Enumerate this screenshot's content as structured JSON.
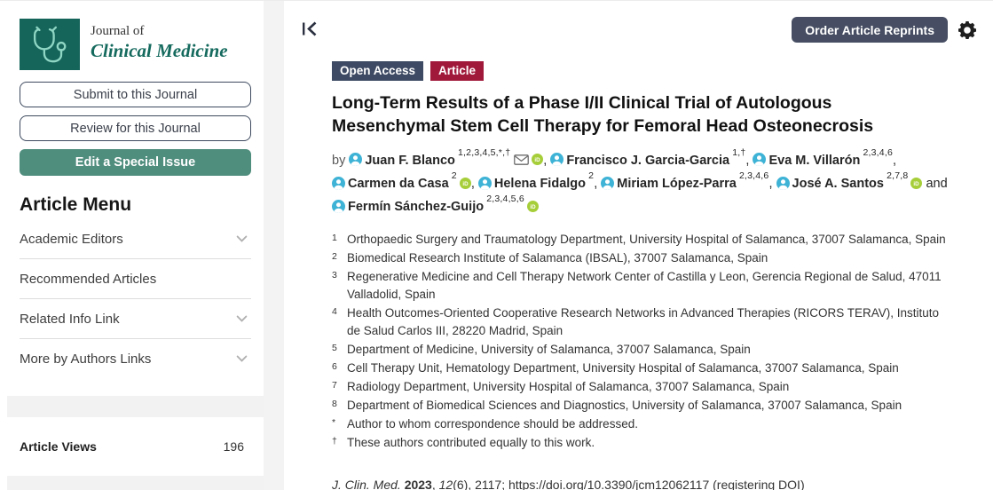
{
  "colors": {
    "brand_teal": "#16655B",
    "teal_button": "#4F8D7D",
    "badge_open_access": "#3E4A63",
    "badge_article": "#A0193B",
    "slate_button": "#474E63",
    "avatar_blue": "#3EB3D6",
    "orcid_green": "#A6CE39"
  },
  "sidebar": {
    "journal": {
      "pretitle": "Journal of",
      "title": "Clinical Medicine"
    },
    "buttons": {
      "submit": "Submit to this Journal",
      "review": "Review for this Journal",
      "edit_special": "Edit a Special Issue"
    },
    "menu_title": "Article Menu",
    "menu_items": [
      {
        "label": "Academic Editors",
        "chevron": true
      },
      {
        "label": "Recommended Articles",
        "chevron": false
      },
      {
        "label": "Related Info Link",
        "chevron": true
      },
      {
        "label": "More by Authors Links",
        "chevron": true
      }
    ],
    "stats": {
      "label": "Article Views",
      "value": "196"
    }
  },
  "header": {
    "order_reprints": "Order Article Reprints"
  },
  "article": {
    "badges": {
      "open_access": "Open Access",
      "type": "Article"
    },
    "title": "Long-Term Results of a Phase I/II Clinical Trial of Autologous Mesenchymal Stem Cell Therapy for Femoral Head Osteonecrosis",
    "by_label": "by",
    "authors": [
      {
        "name": "Juan F. Blanco",
        "sup": "1,2,3,4,5,*,†",
        "email": true,
        "orcid": true,
        "sep": ", "
      },
      {
        "name": "Francisco J. Garcia-Garcia",
        "sup": "1,†",
        "email": false,
        "orcid": false,
        "sep": ", "
      },
      {
        "name": "Eva M. Villarón",
        "sup": "2,3,4,6",
        "email": false,
        "orcid": false,
        "sep": ", "
      },
      {
        "name": "Carmen da Casa",
        "sup": "2",
        "email": false,
        "orcid": true,
        "sep": ", "
      },
      {
        "name": "Helena Fidalgo",
        "sup": "2",
        "email": false,
        "orcid": false,
        "sep": ", "
      },
      {
        "name": "Miriam López-Parra",
        "sup": "2,3,4,6",
        "email": false,
        "orcid": false,
        "sep": ", "
      },
      {
        "name": "José A. Santos",
        "sup": "2,7,8",
        "email": false,
        "orcid": true,
        "sep": " and "
      },
      {
        "name": "Fermín Sánchez-Guijo",
        "sup": "2,3,4,5,6",
        "email": false,
        "orcid": true,
        "sep": ""
      }
    ],
    "affiliations": [
      {
        "marker": "1",
        "text": "Orthopaedic Surgery and Traumatology Department, University Hospital of Salamanca, 37007 Salamanca, Spain"
      },
      {
        "marker": "2",
        "text": "Biomedical Research Institute of Salamanca (IBSAL), 37007 Salamanca, Spain"
      },
      {
        "marker": "3",
        "text": "Regenerative Medicine and Cell Therapy Network Center of Castilla y Leon, Gerencia Regional de Salud, 47011 Valladolid, Spain"
      },
      {
        "marker": "4",
        "text": "Health Outcomes-Oriented Cooperative Research Networks in Advanced Therapies (RICORS TERAV), Instituto de Salud Carlos III, 28220 Madrid, Spain"
      },
      {
        "marker": "5",
        "text": "Department of Medicine, University of Salamanca, 37007 Salamanca, Spain"
      },
      {
        "marker": "6",
        "text": "Cell Therapy Unit, Hematology Department, University Hospital of Salamanca, 37007 Salamanca, Spain"
      },
      {
        "marker": "7",
        "text": "Radiology Department, University Hospital of Salamanca, 37007 Salamanca, Spain"
      },
      {
        "marker": "8",
        "text": "Department of Biomedical Sciences and Diagnostics, University of Salamanca, 37007 Salamanca, Spain"
      },
      {
        "marker": "*",
        "text": "Author to whom correspondence should be addressed."
      },
      {
        "marker": "†",
        "text": "These authors contributed equally to this work."
      }
    ],
    "citation": {
      "journal": "J. Clin. Med.",
      "year": " 2023",
      "sep": ", ",
      "volume": "12",
      "pages": "(6), 2117; ",
      "doi": "https://doi.org/10.3390/jcm12062117",
      "note": " (registering DOI)"
    }
  }
}
